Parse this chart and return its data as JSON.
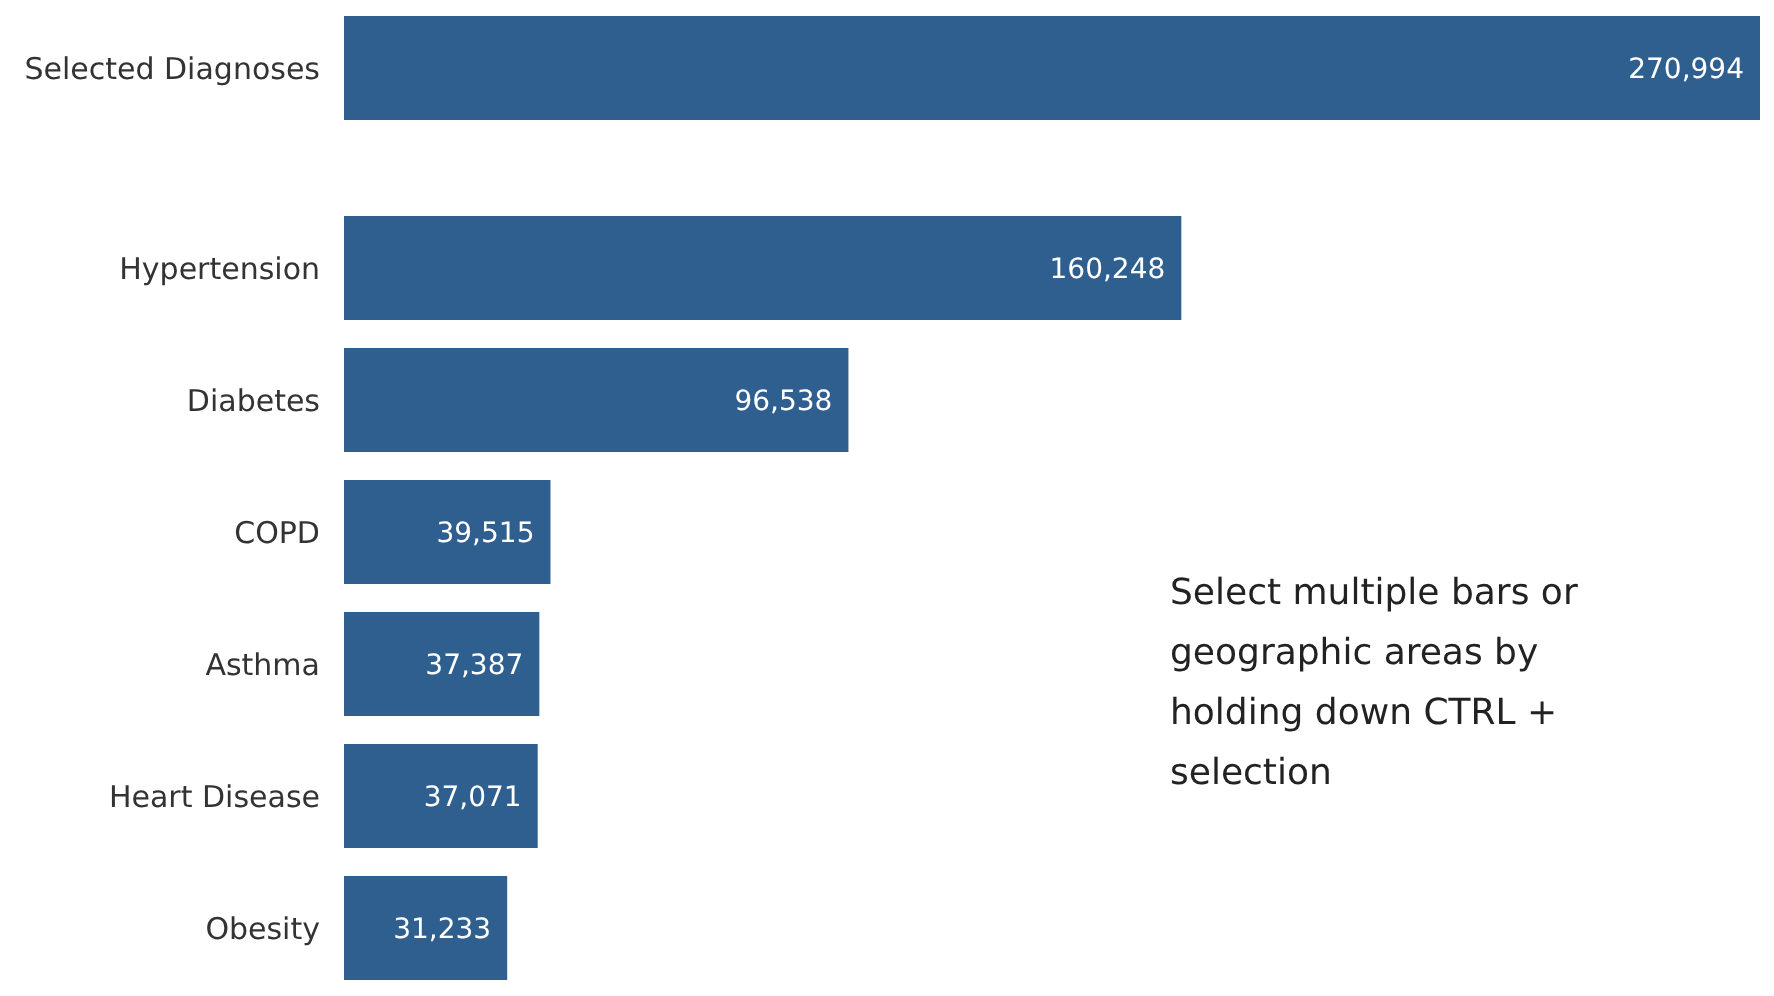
{
  "chart_data": {
    "type": "bar",
    "orientation": "horizontal",
    "categories": [
      "Selected Diagnoses",
      "Hypertension",
      "Diabetes",
      "COPD",
      "Asthma",
      "Heart Disease",
      "Obesity"
    ],
    "values": [
      270994,
      160248,
      96538,
      39515,
      37387,
      37071,
      31233
    ],
    "value_labels": [
      "270,994",
      "160,248",
      "96,538",
      "39,515",
      "37,387",
      "37,071",
      "31,233"
    ],
    "color": "#2f5f8f",
    "annotations": [
      "Select multiple bars or geographic areas by holding down CTRL + selection"
    ]
  }
}
